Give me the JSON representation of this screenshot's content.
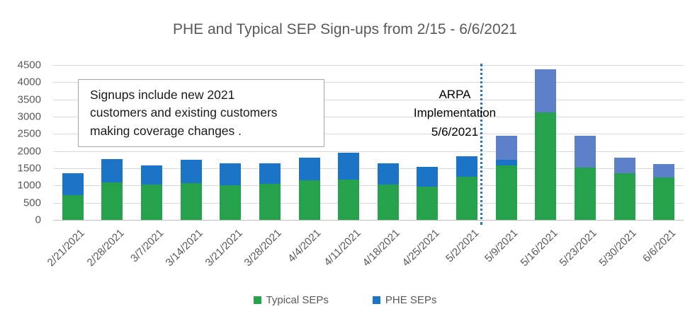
{
  "chart_data": {
    "type": "bar",
    "stacked": true,
    "title": "PHE and Typical SEP Sign-ups from 2/15 - 6/6/2021",
    "categories": [
      "2/21/2021",
      "2/28/2021",
      "3/7/2021",
      "3/14/2021",
      "3/21/2021",
      "3/28/2021",
      "4/4/2021",
      "4/11/2021",
      "4/18/2021",
      "4/25/2021",
      "5/2/2021",
      "5/9/2021",
      "5/16/2021",
      "5/23/2021",
      "5/30/2021",
      "6/6/2021"
    ],
    "series": [
      {
        "name": "Typical SEPs",
        "color": "#27a24c",
        "in_legend": true,
        "values": [
          725,
          1090,
          1030,
          1060,
          1000,
          1050,
          1160,
          1175,
          1030,
          975,
          1250,
          1575,
          3120,
          1515,
          1360,
          1230
        ]
      },
      {
        "name": "PHE SEPs",
        "color": "#1b74c5",
        "in_legend": true,
        "values": [
          640,
          670,
          550,
          690,
          650,
          600,
          650,
          785,
          610,
          565,
          600,
          175,
          0,
          0,
          0,
          0
        ]
      },
      {
        "name": "",
        "color": "#5d81c9",
        "in_legend": false,
        "note": "unlabeled lighter-blue top segments on bars after ARPA implementation",
        "values": [
          0,
          0,
          0,
          0,
          0,
          0,
          0,
          0,
          0,
          0,
          0,
          700,
          1255,
          935,
          440,
          400
        ]
      }
    ],
    "ylim": [
      0,
      4500
    ],
    "ytick_step": 500,
    "grid": true,
    "legend_position": "bottom",
    "legend": {
      "entries": [
        {
          "label": "Typical SEPs",
          "color": "#27a24c"
        },
        {
          "label": "PHE SEPs",
          "color": "#1b74c5"
        }
      ]
    },
    "annotations": {
      "note_box": {
        "text": "Signups include new 2021\ncustomers and existing customers\nmaking coverage changes ."
      },
      "arpa_label": {
        "text": "ARPA\nImplementation\n5/6/2021"
      },
      "arpa_line": {
        "color": "#2e75b6",
        "style": "dotted",
        "position": "between 5/2/2021 and 5/9/2021",
        "x_fraction": 0.678
      }
    }
  }
}
